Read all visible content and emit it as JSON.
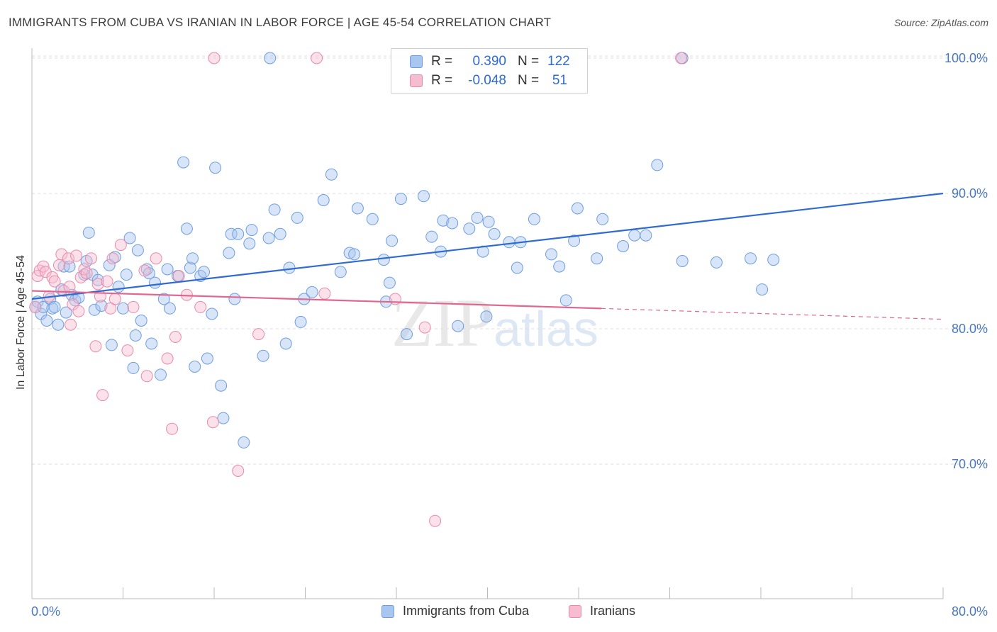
{
  "header": {
    "title": "IMMIGRANTS FROM CUBA VS IRANIAN IN LABOR FORCE | AGE 45-54 CORRELATION CHART",
    "source": "Source: ZipAtlas.com"
  },
  "legend": {
    "rows": [
      {
        "r_label": "R =",
        "r_value": "0.390",
        "n_label": "N =",
        "n_value": "122",
        "color": "#a9c6ef",
        "border": "#6d9de0"
      },
      {
        "r_label": "R =",
        "r_value": "-0.048",
        "n_label": "N =",
        "n_value": "51",
        "color": "#f6bdd0",
        "border": "#e98aaa"
      }
    ]
  },
  "bottom_legend": {
    "items": [
      {
        "label": "Immigrants from Cuba",
        "color": "#a9c6ef",
        "border": "#6d9de0"
      },
      {
        "label": "Iranians",
        "color": "#f6bdd0",
        "border": "#e98aaa"
      }
    ]
  },
  "watermark": {
    "zip": "ZIP",
    "atlas": "atlas"
  },
  "chart_data": {
    "type": "scatter",
    "title": "IMMIGRANTS FROM CUBA VS IRANIAN IN LABOR FORCE | AGE 45-54 CORRELATION CHART",
    "xlabel": "",
    "ylabel": "In Labor Force | Age 45-54",
    "xlim": [
      0,
      80
    ],
    "ylim": [
      60,
      101.5
    ],
    "x_tick_labels": [
      "0.0%",
      "80.0%"
    ],
    "y_ticks": [
      70,
      80,
      90,
      100
    ],
    "y_tick_labels": [
      "70.0%",
      "80.0%",
      "90.0%",
      "100.0%"
    ],
    "grid": true,
    "series": [
      {
        "name": "Immigrants from Cuba",
        "color": "#a9c6ef",
        "stroke": "#6d9de0",
        "trend": {
          "x": [
            0,
            80
          ],
          "y": [
            82.2,
            90.0
          ],
          "color": "#2f6bd0"
        },
        "points": [
          [
            0.3,
            81.6
          ],
          [
            0.5,
            82.0
          ],
          [
            0.8,
            81.1
          ],
          [
            1.0,
            81.6
          ],
          [
            1.3,
            80.6
          ],
          [
            1.6,
            82.2
          ],
          [
            1.8,
            81.5
          ],
          [
            2.0,
            81.6
          ],
          [
            2.3,
            80.3
          ],
          [
            2.6,
            82.9
          ],
          [
            2.8,
            84.6
          ],
          [
            3.0,
            81.2
          ],
          [
            3.3,
            84.6
          ],
          [
            3.5,
            82.5
          ],
          [
            3.8,
            82.1
          ],
          [
            4.1,
            82.3
          ],
          [
            4.6,
            84.0
          ],
          [
            4.8,
            85.0
          ],
          [
            5.0,
            87.1
          ],
          [
            5.3,
            84.0
          ],
          [
            5.5,
            81.4
          ],
          [
            5.8,
            83.6
          ],
          [
            6.1,
            81.7
          ],
          [
            6.8,
            84.7
          ],
          [
            7.0,
            78.8
          ],
          [
            7.3,
            85.3
          ],
          [
            7.6,
            83.1
          ],
          [
            8.0,
            81.5
          ],
          [
            8.3,
            84.0
          ],
          [
            8.6,
            86.7
          ],
          [
            8.9,
            77.1
          ],
          [
            9.1,
            79.5
          ],
          [
            9.3,
            85.8
          ],
          [
            9.6,
            80.6
          ],
          [
            10.1,
            84.4
          ],
          [
            10.3,
            84.1
          ],
          [
            10.5,
            78.9
          ],
          [
            10.8,
            83.4
          ],
          [
            11.3,
            76.6
          ],
          [
            11.6,
            82.2
          ],
          [
            11.9,
            84.4
          ],
          [
            12.1,
            81.5
          ],
          [
            12.8,
            83.9
          ],
          [
            13.3,
            92.3
          ],
          [
            13.6,
            87.4
          ],
          [
            13.9,
            84.5
          ],
          [
            14.1,
            85.2
          ],
          [
            14.3,
            77.2
          ],
          [
            14.8,
            83.9
          ],
          [
            15.1,
            84.2
          ],
          [
            15.4,
            77.8
          ],
          [
            15.8,
            81.1
          ],
          [
            16.1,
            91.9
          ],
          [
            16.6,
            75.8
          ],
          [
            16.8,
            73.4
          ],
          [
            17.3,
            85.6
          ],
          [
            17.5,
            87.0
          ],
          [
            17.8,
            82.2
          ],
          [
            18.1,
            87.0
          ],
          [
            18.6,
            71.6
          ],
          [
            19.1,
            86.3
          ],
          [
            19.3,
            87.3
          ],
          [
            20.3,
            78.0
          ],
          [
            20.8,
            86.7
          ],
          [
            21.3,
            88.8
          ],
          [
            21.8,
            87.0
          ],
          [
            22.3,
            78.9
          ],
          [
            22.6,
            84.5
          ],
          [
            23.3,
            88.2
          ],
          [
            23.6,
            80.5
          ],
          [
            23.9,
            82.2
          ],
          [
            24.6,
            82.7
          ],
          [
            25.6,
            89.5
          ],
          [
            26.3,
            91.4
          ],
          [
            27.1,
            84.2
          ],
          [
            27.9,
            85.6
          ],
          [
            28.3,
            85.5
          ],
          [
            28.6,
            88.9
          ],
          [
            29.9,
            88.1
          ],
          [
            30.9,
            85.1
          ],
          [
            31.1,
            82.0
          ],
          [
            31.4,
            83.4
          ],
          [
            31.6,
            86.5
          ],
          [
            32.4,
            89.6
          ],
          [
            32.9,
            79.6
          ],
          [
            34.4,
            89.8
          ],
          [
            35.1,
            86.8
          ],
          [
            35.9,
            85.7
          ],
          [
            36.1,
            88.0
          ],
          [
            36.9,
            87.8
          ],
          [
            37.4,
            80.2
          ],
          [
            38.4,
            87.4
          ],
          [
            39.1,
            88.2
          ],
          [
            39.6,
            85.7
          ],
          [
            39.9,
            80.9
          ],
          [
            40.1,
            87.9
          ],
          [
            40.6,
            87.0
          ],
          [
            41.9,
            86.4
          ],
          [
            42.6,
            84.5
          ],
          [
            42.9,
            86.4
          ],
          [
            44.1,
            88.1
          ],
          [
            45.6,
            85.5
          ],
          [
            46.3,
            84.6
          ],
          [
            46.9,
            82.1
          ],
          [
            47.6,
            86.5
          ],
          [
            47.9,
            88.9
          ],
          [
            49.6,
            85.2
          ],
          [
            50.1,
            88.1
          ],
          [
            51.9,
            86.1
          ],
          [
            52.9,
            86.9
          ],
          [
            53.9,
            86.9
          ],
          [
            54.9,
            92.1
          ],
          [
            57.1,
            85.0
          ],
          [
            60.1,
            84.9
          ],
          [
            63.1,
            85.2
          ],
          [
            64.1,
            82.9
          ],
          [
            65.1,
            85.1
          ],
          [
            20.9,
            100.0
          ],
          [
            57.1,
            100.0
          ]
        ]
      },
      {
        "name": "Iranians",
        "color": "#f6bdd0",
        "stroke": "#e98aaa",
        "trend": {
          "x": [
            0,
            50
          ],
          "y": [
            82.8,
            81.5
          ],
          "dashed_to": [
            80,
            80.7
          ],
          "color": "#e0688f"
        },
        "points": [
          [
            0.3,
            81.6
          ],
          [
            0.5,
            83.9
          ],
          [
            0.7,
            84.3
          ],
          [
            1.0,
            84.6
          ],
          [
            1.2,
            84.2
          ],
          [
            1.5,
            82.4
          ],
          [
            1.8,
            83.8
          ],
          [
            2.0,
            83.5
          ],
          [
            2.4,
            84.7
          ],
          [
            2.6,
            85.5
          ],
          [
            2.8,
            82.8
          ],
          [
            3.2,
            85.2
          ],
          [
            3.4,
            80.3
          ],
          [
            3.6,
            81.8
          ],
          [
            3.9,
            85.4
          ],
          [
            4.1,
            81.3
          ],
          [
            4.3,
            83.8
          ],
          [
            4.6,
            84.4
          ],
          [
            4.8,
            84.1
          ],
          [
            5.2,
            85.2
          ],
          [
            5.6,
            78.7
          ],
          [
            5.8,
            83.3
          ],
          [
            6.2,
            75.1
          ],
          [
            6.6,
            83.5
          ],
          [
            6.9,
            81.5
          ],
          [
            7.1,
            85.2
          ],
          [
            7.3,
            82.2
          ],
          [
            8.4,
            78.4
          ],
          [
            8.9,
            81.6
          ],
          [
            9.9,
            84.3
          ],
          [
            10.1,
            76.5
          ],
          [
            10.9,
            85.2
          ],
          [
            11.9,
            77.8
          ],
          [
            12.3,
            72.6
          ],
          [
            12.6,
            79.4
          ],
          [
            12.9,
            83.9
          ],
          [
            13.6,
            82.5
          ],
          [
            14.8,
            81.6
          ],
          [
            15.9,
            73.1
          ],
          [
            18.1,
            69.5
          ],
          [
            19.9,
            79.6
          ],
          [
            25.7,
            82.6
          ],
          [
            31.9,
            82.2
          ],
          [
            34.5,
            80.1
          ],
          [
            35.4,
            65.8
          ],
          [
            7.8,
            86.2
          ],
          [
            16.0,
            100.0
          ],
          [
            25.0,
            100.0
          ],
          [
            57.0,
            100.0
          ],
          [
            3.3,
            83.1
          ],
          [
            6.0,
            82.4
          ]
        ]
      }
    ]
  }
}
